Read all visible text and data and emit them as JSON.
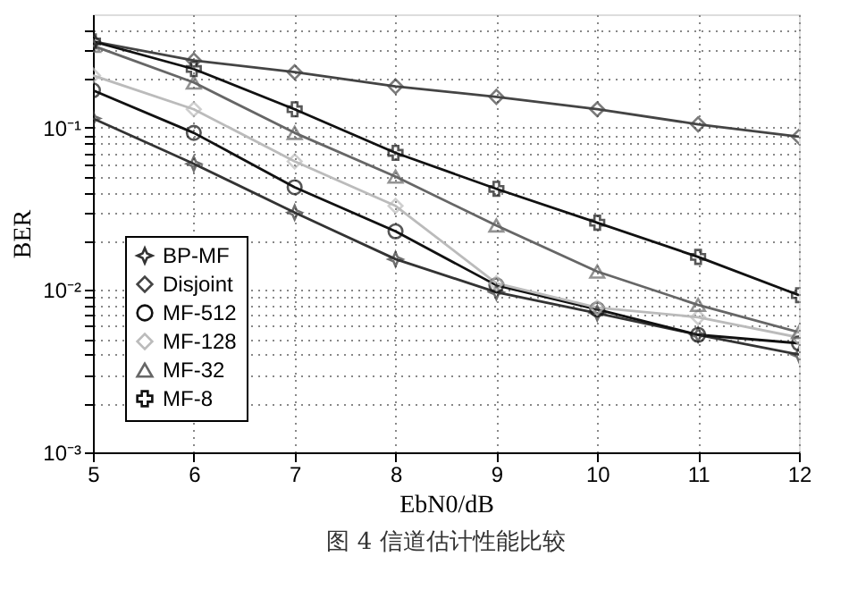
{
  "chart_data": {
    "type": "line",
    "xlabel": "EbN0/dB",
    "ylabel": "BER",
    "x": [
      5,
      6,
      7,
      8,
      9,
      10,
      11,
      12
    ],
    "series": [
      {
        "name": "BP-MF",
        "color": "#333333",
        "marker": "star",
        "values": [
          0.114,
          0.06,
          0.03,
          0.0155,
          0.0097,
          0.0072,
          0.0053,
          0.004
        ]
      },
      {
        "name": "Disjoint",
        "color": "#444444",
        "marker": "diamond",
        "values": [
          0.34,
          0.26,
          0.22,
          0.18,
          0.155,
          0.13,
          0.105,
          0.088
        ]
      },
      {
        "name": "MF-512",
        "color": "#111111",
        "marker": "circle",
        "values": [
          0.17,
          0.093,
          0.043,
          0.023,
          0.0107,
          0.0076,
          0.0053,
          0.0047
        ]
      },
      {
        "name": "MF-128",
        "color": "#bbbbbb",
        "marker": "diamond",
        "values": [
          0.21,
          0.13,
          0.062,
          0.033,
          0.011,
          0.0078,
          0.0068,
          0.0051
        ]
      },
      {
        "name": "MF-32",
        "color": "#666666",
        "marker": "triangle",
        "values": [
          0.32,
          0.19,
          0.093,
          0.05,
          0.025,
          0.013,
          0.0081,
          0.0055
        ]
      },
      {
        "name": "MF-8",
        "color": "#111111",
        "marker": "cross",
        "values": [
          0.34,
          0.23,
          0.13,
          0.07,
          0.042,
          0.026,
          0.016,
          0.0093
        ]
      }
    ],
    "log": "y",
    "xlim": [
      5,
      12
    ],
    "xticks": [
      5,
      6,
      7,
      8,
      9,
      10,
      11,
      12
    ],
    "ylim": [
      0.001,
      0.5
    ],
    "yticks": [
      {
        "value": 0.001,
        "label": "10⁻³"
      },
      {
        "value": 0.002,
        "label": null
      },
      {
        "value": 0.003,
        "label": null
      },
      {
        "value": 0.004,
        "label": null
      },
      {
        "value": 0.005,
        "label": null
      },
      {
        "value": 0.006,
        "label": null
      },
      {
        "value": 0.007,
        "label": null
      },
      {
        "value": 0.008,
        "label": null
      },
      {
        "value": 0.009,
        "label": null
      },
      {
        "value": 0.01,
        "label": "10⁻²"
      },
      {
        "value": 0.02,
        "label": null
      },
      {
        "value": 0.03,
        "label": null
      },
      {
        "value": 0.04,
        "label": null
      },
      {
        "value": 0.05,
        "label": null
      },
      {
        "value": 0.06,
        "label": null
      },
      {
        "value": 0.07,
        "label": null
      },
      {
        "value": 0.08,
        "label": null
      },
      {
        "value": 0.09,
        "label": null
      },
      {
        "value": 0.1,
        "label": "10⁻¹"
      },
      {
        "value": 0.2,
        "label": null
      },
      {
        "value": 0.3,
        "label": null
      },
      {
        "value": 0.4,
        "label": null
      }
    ],
    "grid": true,
    "legend": "bottom left",
    "line_style": "solid",
    "annotations": [
      "图 4   信道估计性能比较"
    ]
  }
}
